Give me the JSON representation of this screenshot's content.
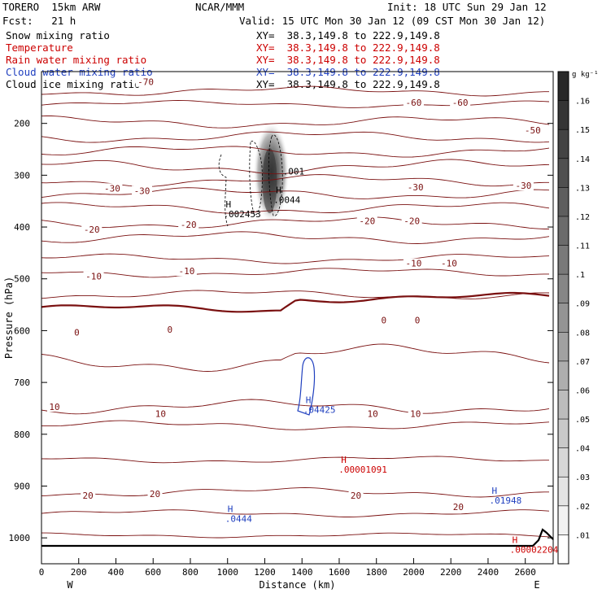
{
  "header": {
    "model": "TORERO  15km ARW",
    "center": "NCAR/MMM",
    "init": "Init: 18 UTC Sun 29 Jan 12",
    "fcst": "Fcst:   21 h",
    "valid": "Valid: 15 UTC Mon 30 Jan 12 (09 CST Mon 30 Jan 12)",
    "colors": {
      "text": "#000000",
      "temperature": "#cc0000",
      "rain": "#cc0000",
      "cloud_water": "#1f3fbf",
      "cloud_ice": "#000000",
      "isotherm": "#7a1010"
    }
  },
  "fields": [
    {
      "name": "Snow mixing ratio",
      "xy": "XY=  38.3,149.8 to 222.9,149.8",
      "color": "#000000"
    },
    {
      "name": "Temperature",
      "xy": "XY=  38.3,149.8 to 222.9,149.8",
      "color": "#cc0000"
    },
    {
      "name": "Rain water mixing ratio",
      "xy": "XY=  38.3,149.8 to 222.9,149.8",
      "color": "#cc0000"
    },
    {
      "name": "Cloud water mixing ratio",
      "xy": "XY=  38.3,149.8 to 222.9,149.8",
      "color": "#1f3fbf"
    },
    {
      "name": "Cloud ice mixing ratio",
      "xy": "XY=  38.3,149.8 to 222.9,149.8",
      "color": "#000000"
    }
  ],
  "chart_data": {
    "type": "contour",
    "xlabel": "Distance (km)",
    "ylabel": "Pressure (hPa)",
    "xlim": [
      0,
      2750
    ],
    "ylim": [
      1050,
      100
    ],
    "x_ticks": [
      "0",
      "200",
      "400",
      "600",
      "800",
      "1000",
      "1200",
      "1400",
      "1600",
      "1800",
      "2000",
      "2200",
      "2400",
      "2600"
    ],
    "y_ticks": [
      "200",
      "300",
      "400",
      "500",
      "600",
      "700",
      "800",
      "900",
      "1000"
    ],
    "y_tick_values": [
      200,
      300,
      400,
      500,
      600,
      700,
      800,
      900,
      1000
    ],
    "x_end_labels": {
      "left": "W",
      "right": "E"
    },
    "colorbar": {
      "unit": "g kg⁻¹",
      "levels": [
        ".01",
        ".02",
        ".03",
        ".04",
        ".05",
        ".06",
        ".07",
        ".08",
        ".09",
        ".1",
        ".11",
        ".12",
        ".13",
        ".14",
        ".15",
        ".16"
      ],
      "level_values": [
        0.01,
        0.02,
        0.03,
        0.04,
        0.05,
        0.06,
        0.07,
        0.08,
        0.09,
        0.1,
        0.11,
        0.12,
        0.13,
        0.14,
        0.15,
        0.16
      ],
      "cmap": "greys"
    },
    "snow_shading": {
      "center_x": 1235,
      "center_p": 295,
      "max": 0.13
    },
    "temperature_contour_labels": [
      {
        "text": "-70",
        "x": 560,
        "p": 120
      },
      {
        "text": "-60",
        "x": 2000,
        "p": 160
      },
      {
        "text": "-60",
        "x": 2250,
        "p": 160
      },
      {
        "text": "-50",
        "x": 2640,
        "p": 213
      },
      {
        "text": "-30",
        "x": 380,
        "p": 325
      },
      {
        "text": "-30",
        "x": 540,
        "p": 330
      },
      {
        "text": "-30",
        "x": 2010,
        "p": 323
      },
      {
        "text": "-30",
        "x": 2590,
        "p": 320
      },
      {
        "text": "-20",
        "x": 270,
        "p": 405
      },
      {
        "text": "-20",
        "x": 790,
        "p": 395
      },
      {
        "text": "-20",
        "x": 1750,
        "p": 388
      },
      {
        "text": "-20",
        "x": 1990,
        "p": 388
      },
      {
        "text": "-10",
        "x": 280,
        "p": 495
      },
      {
        "text": "-10",
        "x": 780,
        "p": 485
      },
      {
        "text": "-10",
        "x": 2000,
        "p": 470
      },
      {
        "text": "-10",
        "x": 2190,
        "p": 470
      },
      {
        "text": "0",
        "x": 190,
        "p": 603
      },
      {
        "text": "0",
        "x": 690,
        "p": 598
      },
      {
        "text": "0",
        "x": 1840,
        "p": 580
      },
      {
        "text": "0",
        "x": 2020,
        "p": 580
      },
      {
        "text": "10",
        "x": 70,
        "p": 747
      },
      {
        "text": "10",
        "x": 640,
        "p": 760
      },
      {
        "text": "10",
        "x": 1780,
        "p": 760
      },
      {
        "text": "10",
        "x": 2010,
        "p": 760
      },
      {
        "text": "20",
        "x": 250,
        "p": 918
      },
      {
        "text": "20",
        "x": 610,
        "p": 915
      },
      {
        "text": "20",
        "x": 1690,
        "p": 918
      },
      {
        "text": "20",
        "x": 2240,
        "p": 940
      }
    ],
    "maxima_labels": [
      {
        "field": "snow",
        "mark": "",
        "value": ".001",
        "x": 1310,
        "p": 280,
        "color": "#000000"
      },
      {
        "field": "snow",
        "mark": "H",
        "value": ".0044",
        "x": 1260,
        "p": 335,
        "color": "#000000"
      },
      {
        "field": "cloud_ice",
        "mark": "H",
        "value": ".002453",
        "x": 990,
        "p": 362,
        "color": "#000000"
      },
      {
        "field": "cloud_water",
        "mark": "H",
        "value": ".04425",
        "x": 1420,
        "p": 740,
        "color": "#1f3fbf"
      },
      {
        "field": "rain",
        "mark": "H",
        "value": ".00001091",
        "x": 1610,
        "p": 855,
        "color": "#cc0000"
      },
      {
        "field": "cloud_water",
        "mark": "H",
        "value": ".01948",
        "x": 2420,
        "p": 915,
        "color": "#1f3fbf"
      },
      {
        "field": "cloud_water",
        "mark": "H",
        "value": ".0444",
        "x": 1000,
        "p": 950,
        "color": "#1f3fbf"
      },
      {
        "field": "rain",
        "mark": "H",
        "value": ".00002204",
        "x": 2530,
        "p": 1010,
        "color": "#cc0000"
      }
    ],
    "grid": false
  }
}
